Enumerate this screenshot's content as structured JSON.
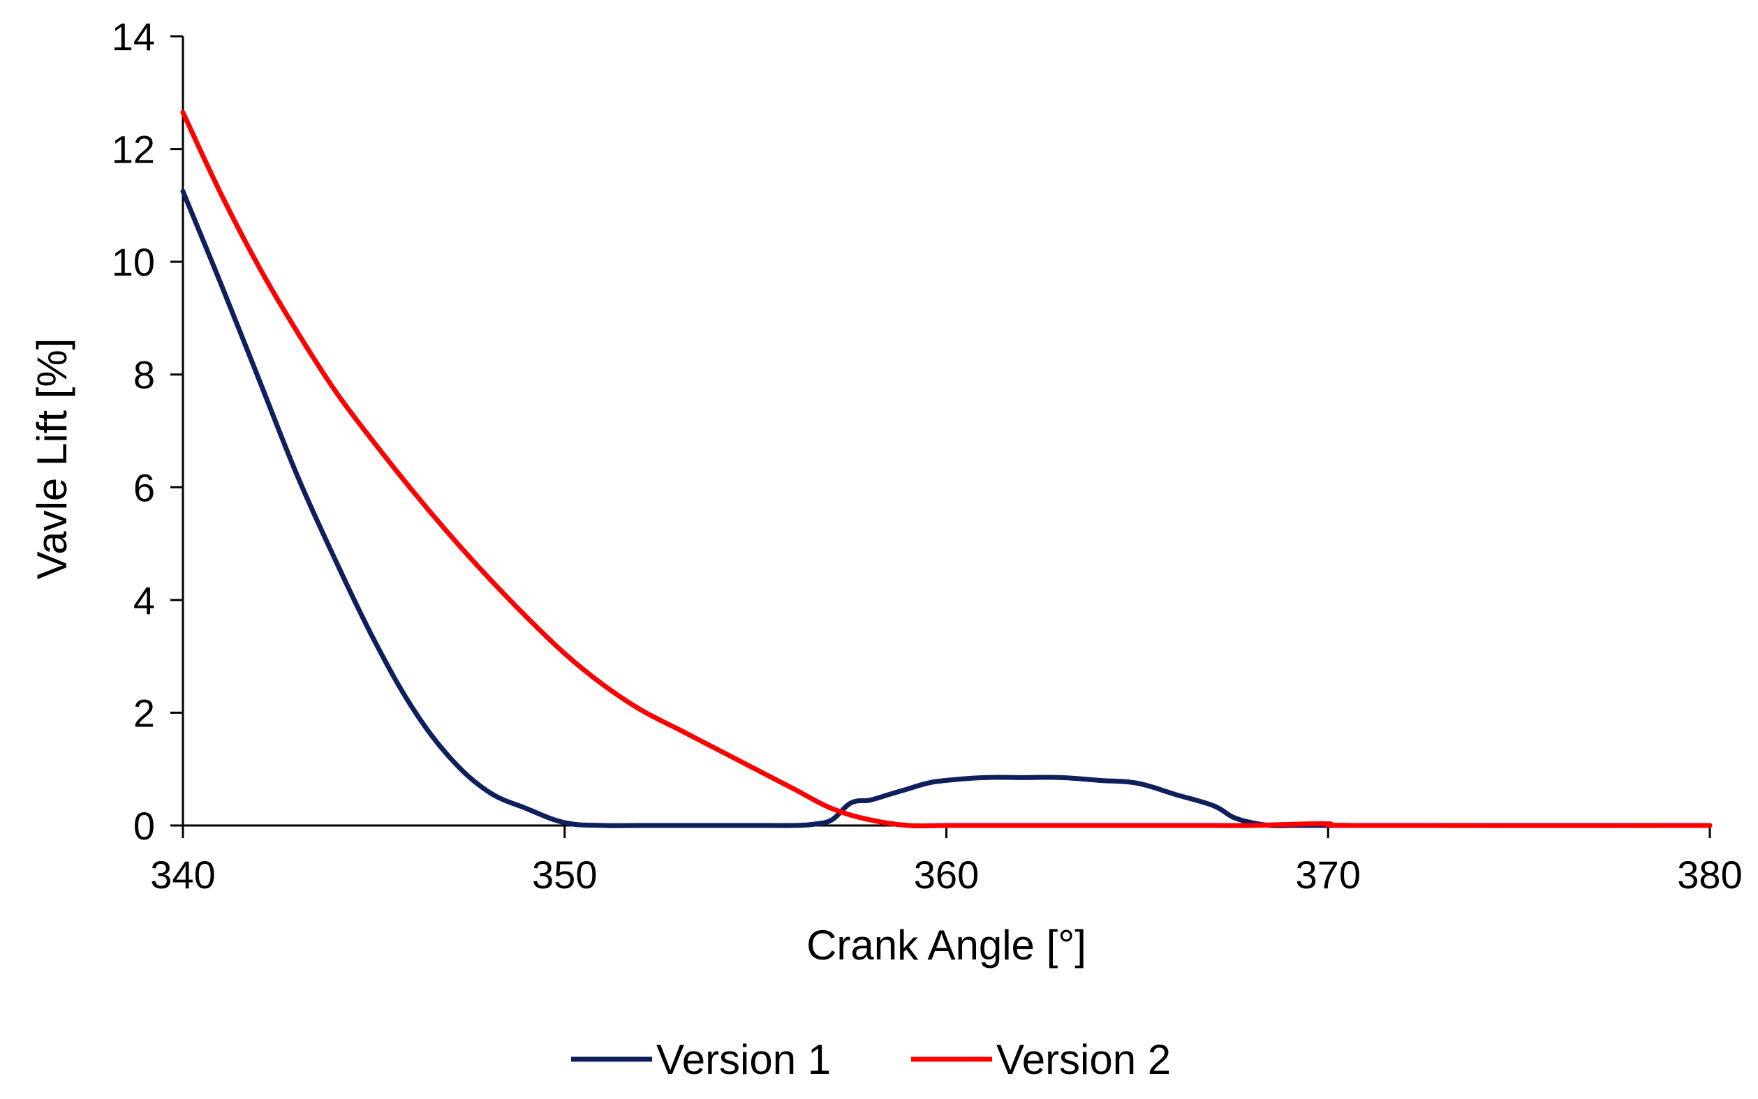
{
  "chart_data": {
    "type": "line",
    "title": "",
    "xlabel": "Crank Angle [°]",
    "ylabel": "Vavle Lift [%]",
    "xlim": [
      340,
      380
    ],
    "ylim": [
      0,
      14
    ],
    "xticks": [
      340,
      350,
      360,
      370,
      380
    ],
    "yticks": [
      0,
      2,
      4,
      6,
      8,
      10,
      12,
      14
    ],
    "xtick_labels": [
      "340",
      "350",
      "360",
      "370",
      "380"
    ],
    "ytick_labels": [
      "0",
      "2",
      "4",
      "6",
      "8",
      "10",
      "12",
      "14"
    ],
    "grid": false,
    "legend_position": "bottom",
    "series": [
      {
        "name": "Version 1",
        "color": "#0d1f5c",
        "x": [
          340,
          341,
          342,
          343,
          344,
          345,
          346,
          347,
          348,
          349,
          350,
          351,
          352,
          353,
          353.5,
          354,
          354.5,
          355,
          356,
          356.5,
          357,
          357.5,
          358,
          358.5,
          359,
          359.5,
          360,
          361,
          362,
          363,
          364,
          365,
          366,
          367,
          367.5,
          368,
          368.5,
          369,
          370,
          380
        ],
        "y": [
          11.25,
          9.6,
          7.9,
          6.2,
          4.7,
          3.3,
          2.1,
          1.2,
          0.6,
          0.3,
          0.05,
          0.0,
          0.0,
          0.0,
          0.0,
          0.0,
          0.0,
          0.0,
          0.0,
          0.02,
          0.1,
          0.4,
          0.45,
          0.55,
          0.65,
          0.75,
          0.8,
          0.85,
          0.85,
          0.85,
          0.8,
          0.75,
          0.55,
          0.35,
          0.15,
          0.05,
          0.0,
          0.0,
          0.0,
          0.0
        ]
      },
      {
        "name": "Version 2",
        "color": "#ff0000",
        "x": [
          340,
          341,
          342,
          343,
          344,
          345,
          346,
          347,
          348,
          349,
          350,
          351,
          352,
          353,
          354,
          355,
          356,
          357,
          358,
          359,
          360,
          361,
          362,
          363,
          364,
          365,
          366,
          367,
          368,
          369,
          370,
          371,
          380
        ],
        "y": [
          12.65,
          11.2,
          9.9,
          8.75,
          7.7,
          6.8,
          5.95,
          5.15,
          4.4,
          3.7,
          3.05,
          2.5,
          2.05,
          1.7,
          1.35,
          1.0,
          0.65,
          0.3,
          0.1,
          0.0,
          0.0,
          0.0,
          0.0,
          0.0,
          0.0,
          0.0,
          0.0,
          0.0,
          0.0,
          0.02,
          0.03,
          0.0,
          0.0
        ]
      }
    ]
  }
}
